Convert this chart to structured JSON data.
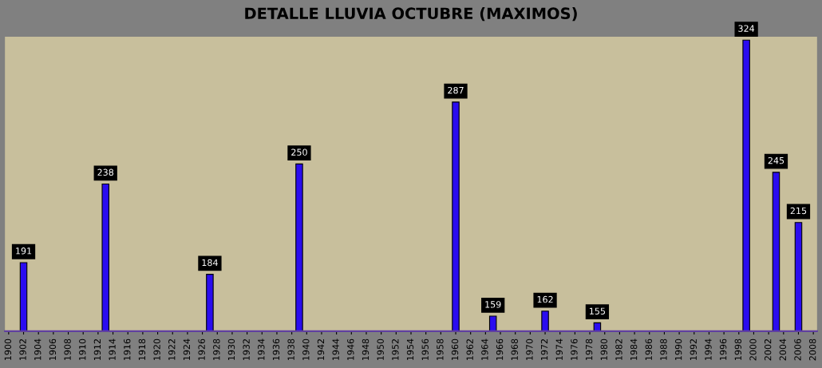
{
  "chart_data": {
    "type": "bar",
    "title": "DETALLE LLUVIA OCTUBRE (MAXIMOS)",
    "x": [
      1902,
      1913,
      1927,
      1939,
      1960,
      1965,
      1972,
      1979,
      1999,
      2003,
      2006
    ],
    "values": [
      191,
      238,
      184,
      250,
      287,
      159,
      162,
      155,
      324,
      245,
      215
    ],
    "color": "#2a0cf0",
    "xlim": [
      1899.5,
      2008.5
    ],
    "xticks": [
      1900,
      1902,
      1904,
      1906,
      1908,
      1910,
      1912,
      1914,
      1916,
      1918,
      1920,
      1922,
      1924,
      1926,
      1928,
      1930,
      1932,
      1934,
      1936,
      1938,
      1940,
      1942,
      1944,
      1946,
      1948,
      1950,
      1952,
      1954,
      1956,
      1958,
      1960,
      1962,
      1964,
      1966,
      1968,
      1970,
      1972,
      1974,
      1976,
      1978,
      1980,
      1982,
      1984,
      1986,
      1988,
      1990,
      1992,
      1994,
      1996,
      1998,
      2000,
      2002,
      2004,
      2006,
      2008
    ],
    "ylim": [
      150,
      326
    ],
    "tick_labels": "x",
    "data_labels": true,
    "grid": false,
    "legend": false
  }
}
